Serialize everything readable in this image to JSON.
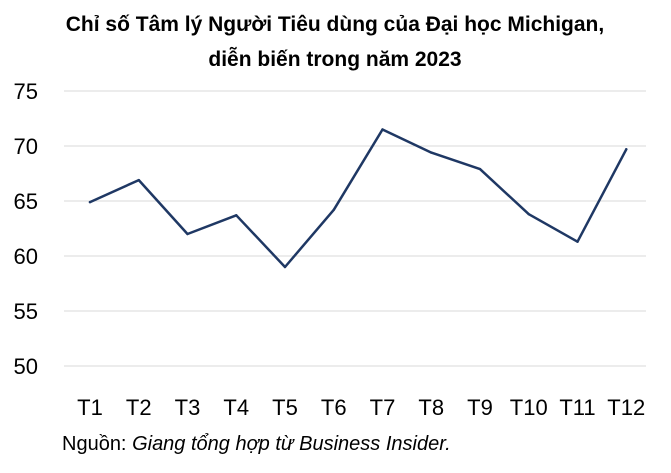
{
  "chart_data": {
    "type": "line",
    "title_lines": [
      "Chỉ số Tâm lý Người Tiêu dùng của Đại học Michigan,",
      "diễn biến trong năm 2023"
    ],
    "categories": [
      "T1",
      "T2",
      "T3",
      "T4",
      "T5",
      "T6",
      "T7",
      "T8",
      "T9",
      "T10",
      "T11",
      "T12"
    ],
    "values": [
      64.9,
      66.9,
      62.0,
      63.7,
      59.0,
      64.2,
      71.5,
      69.4,
      67.9,
      63.8,
      61.3,
      69.7
    ],
    "yticks": [
      75,
      70,
      65,
      60,
      55,
      50
    ],
    "ylim": [
      50,
      75
    ],
    "grid": true,
    "line_color": "#1f3864",
    "grid_color": "#d9d9d9"
  },
  "source": {
    "prefix": "Nguồn: ",
    "text": "Giang tổng hợp từ Business Insider."
  }
}
